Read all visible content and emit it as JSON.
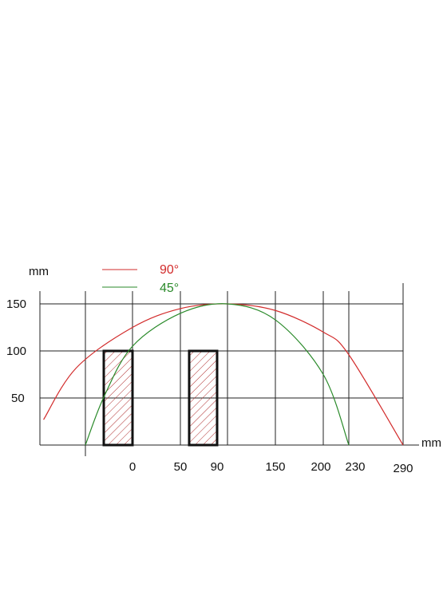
{
  "chart_data": {
    "type": "line",
    "y_unit": "mm",
    "x_unit": "mm",
    "x_tick_labels": [
      "0",
      "50",
      "90",
      "150",
      "200",
      "230",
      "290"
    ],
    "y_tick_labels": [
      "150",
      "100",
      "50"
    ],
    "xlim": [
      -100,
      290
    ],
    "ylim": [
      0,
      150
    ],
    "grid": true,
    "legend_position": "top-left",
    "series": [
      {
        "name": "90°",
        "color": "#d22b2b",
        "x": [
          -96,
          -60,
          0,
          50,
          90,
          150,
          200,
          230,
          290
        ],
        "y": [
          27,
          82,
          125,
          145,
          150,
          143,
          120,
          96,
          0
        ]
      },
      {
        "name": "45°",
        "color": "#2a8a2a",
        "x": [
          -50,
          -30,
          0,
          50,
          90,
          150,
          200,
          230
        ],
        "y": [
          0,
          52,
          105,
          140,
          150,
          133,
          75,
          0
        ]
      }
    ],
    "hatched_blocks": [
      {
        "x_from": -30,
        "x_to": 0,
        "y_from": 0,
        "y_to": 100
      },
      {
        "x_from": 60,
        "x_to": 90,
        "y_from": 0,
        "y_to": 100
      }
    ]
  }
}
